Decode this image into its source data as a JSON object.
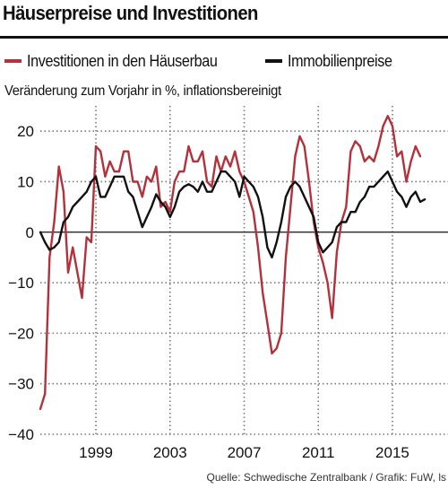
{
  "header": {
    "title": "Häuserpreise und Investitionen",
    "subtitle": "Veränderung zum Vorjahr in %, inflationsbereinigt",
    "source": "Quelle: Schwedische Zentralbank / Grafik: FuW, ls"
  },
  "colors": {
    "investment": "#b3313a",
    "prices": "#111111",
    "grid": "#777777",
    "zero": "#111111"
  },
  "chart_data": {
    "type": "line",
    "xlim": [
      1996.0,
      2018.0
    ],
    "ylim": [
      -40,
      25
    ],
    "ylabel": "Veränderung zum Vorjahr in %, inflationsbereinigt",
    "x_ticks": [
      1999,
      2003,
      2007,
      2011,
      2015
    ],
    "y_ticks": [
      20,
      10,
      0,
      -10,
      -20,
      -30,
      -40
    ],
    "grid": true,
    "legend_position": "top",
    "series": [
      {
        "name": "Investitionen in den Häuserbau",
        "color": "#b3313a",
        "points": [
          [
            1996.0,
            -35
          ],
          [
            1996.25,
            -32
          ],
          [
            1996.5,
            -5
          ],
          [
            1996.75,
            2
          ],
          [
            1997.0,
            13
          ],
          [
            1997.25,
            8
          ],
          [
            1997.5,
            -8
          ],
          [
            1997.75,
            -3
          ],
          [
            1998.0,
            -8
          ],
          [
            1998.25,
            -13
          ],
          [
            1998.5,
            -1
          ],
          [
            1998.75,
            -2
          ],
          [
            1999.0,
            17
          ],
          [
            1999.25,
            16
          ],
          [
            1999.5,
            11
          ],
          [
            1999.75,
            14
          ],
          [
            2000.0,
            12
          ],
          [
            2000.25,
            12
          ],
          [
            2000.5,
            16
          ],
          [
            2000.75,
            16
          ],
          [
            2001.0,
            10
          ],
          [
            2001.25,
            10
          ],
          [
            2001.5,
            7
          ],
          [
            2001.75,
            11
          ],
          [
            2002.0,
            10
          ],
          [
            2002.25,
            13
          ],
          [
            2002.5,
            5
          ],
          [
            2002.75,
            6
          ],
          [
            2003.0,
            4
          ],
          [
            2003.25,
            10
          ],
          [
            2003.5,
            12
          ],
          [
            2003.75,
            12
          ],
          [
            2004.0,
            17
          ],
          [
            2004.25,
            14
          ],
          [
            2004.5,
            14
          ],
          [
            2004.75,
            16
          ],
          [
            2005.0,
            10
          ],
          [
            2005.25,
            9
          ],
          [
            2005.5,
            15
          ],
          [
            2005.75,
            12
          ],
          [
            2006.0,
            15
          ],
          [
            2006.25,
            13
          ],
          [
            2006.5,
            16
          ],
          [
            2006.75,
            12
          ],
          [
            2007.0,
            10
          ],
          [
            2007.25,
            7
          ],
          [
            2007.5,
            4
          ],
          [
            2007.75,
            -3
          ],
          [
            2008.0,
            -12
          ],
          [
            2008.25,
            -18
          ],
          [
            2008.5,
            -24
          ],
          [
            2008.75,
            -23
          ],
          [
            2009.0,
            -20
          ],
          [
            2009.25,
            -5
          ],
          [
            2009.5,
            5
          ],
          [
            2009.75,
            15
          ],
          [
            2010.0,
            19
          ],
          [
            2010.25,
            17
          ],
          [
            2010.5,
            10
          ],
          [
            2010.75,
            2
          ],
          [
            2011.0,
            -3
          ],
          [
            2011.25,
            -6
          ],
          [
            2011.5,
            -10
          ],
          [
            2011.75,
            -17
          ],
          [
            2012.0,
            -4
          ],
          [
            2012.25,
            2
          ],
          [
            2012.5,
            5
          ],
          [
            2012.75,
            16
          ],
          [
            2013.0,
            18
          ],
          [
            2013.25,
            17
          ],
          [
            2013.5,
            14
          ],
          [
            2013.75,
            15
          ],
          [
            2014.0,
            14
          ],
          [
            2014.25,
            17
          ],
          [
            2014.5,
            21
          ],
          [
            2014.75,
            23
          ],
          [
            2015.0,
            21
          ],
          [
            2015.25,
            15
          ],
          [
            2015.5,
            16
          ],
          [
            2015.75,
            10
          ],
          [
            2016.0,
            14
          ],
          [
            2016.25,
            17
          ],
          [
            2016.5,
            15
          ]
        ]
      },
      {
        "name": "Immobilienpreise",
        "color": "#111111",
        "points": [
          [
            1996.0,
            0
          ],
          [
            1996.25,
            -2
          ],
          [
            1996.5,
            -3.5
          ],
          [
            1996.75,
            -3
          ],
          [
            1997.0,
            -2
          ],
          [
            1997.25,
            2
          ],
          [
            1997.5,
            3
          ],
          [
            1997.75,
            5
          ],
          [
            1998.0,
            6
          ],
          [
            1998.25,
            7
          ],
          [
            1998.5,
            8
          ],
          [
            1998.75,
            10
          ],
          [
            1999.0,
            11
          ],
          [
            1999.25,
            7
          ],
          [
            1999.5,
            7
          ],
          [
            1999.75,
            9
          ],
          [
            2000.0,
            11
          ],
          [
            2000.25,
            11
          ],
          [
            2000.5,
            11
          ],
          [
            2000.75,
            8
          ],
          [
            2001.0,
            7
          ],
          [
            2001.25,
            4
          ],
          [
            2001.5,
            1
          ],
          [
            2001.75,
            3
          ],
          [
            2002.0,
            5
          ],
          [
            2002.25,
            7.5
          ],
          [
            2002.5,
            6
          ],
          [
            2002.75,
            5
          ],
          [
            2003.0,
            3
          ],
          [
            2003.25,
            5
          ],
          [
            2003.5,
            8
          ],
          [
            2003.75,
            9
          ],
          [
            2004.0,
            9.5
          ],
          [
            2004.25,
            9
          ],
          [
            2004.5,
            8
          ],
          [
            2004.75,
            10
          ],
          [
            2005.0,
            8
          ],
          [
            2005.25,
            8
          ],
          [
            2005.5,
            10
          ],
          [
            2005.75,
            12
          ],
          [
            2006.0,
            12
          ],
          [
            2006.25,
            11
          ],
          [
            2006.5,
            10
          ],
          [
            2006.75,
            7
          ],
          [
            2007.0,
            11
          ],
          [
            2007.25,
            10
          ],
          [
            2007.5,
            9
          ],
          [
            2007.75,
            7
          ],
          [
            2008.0,
            3
          ],
          [
            2008.25,
            -3
          ],
          [
            2008.5,
            -5
          ],
          [
            2008.75,
            -2
          ],
          [
            2009.0,
            2
          ],
          [
            2009.25,
            7
          ],
          [
            2009.5,
            9
          ],
          [
            2009.75,
            10
          ],
          [
            2010.0,
            9
          ],
          [
            2010.25,
            7
          ],
          [
            2010.5,
            5
          ],
          [
            2010.75,
            3
          ],
          [
            2011.0,
            -2
          ],
          [
            2011.25,
            -4
          ],
          [
            2011.5,
            -3
          ],
          [
            2011.75,
            -2
          ],
          [
            2012.0,
            1
          ],
          [
            2012.25,
            2
          ],
          [
            2012.5,
            2
          ],
          [
            2012.75,
            4
          ],
          [
            2013.0,
            4
          ],
          [
            2013.25,
            6
          ],
          [
            2013.5,
            7
          ],
          [
            2013.75,
            9
          ],
          [
            2014.0,
            9
          ],
          [
            2014.25,
            10
          ],
          [
            2014.5,
            11
          ],
          [
            2014.75,
            12
          ],
          [
            2015.0,
            10
          ],
          [
            2015.25,
            8
          ],
          [
            2015.5,
            7
          ],
          [
            2015.75,
            5
          ],
          [
            2016.0,
            7
          ],
          [
            2016.25,
            8
          ],
          [
            2016.5,
            6
          ],
          [
            2016.75,
            6.5
          ]
        ]
      }
    ]
  }
}
